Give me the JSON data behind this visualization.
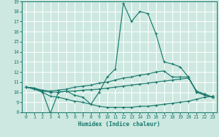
{
  "title": "",
  "xlabel": "Humidex (Indice chaleur)",
  "ylabel": "",
  "bg_color": "#cde8e0",
  "grid_color": "#ffffff",
  "line_color": "#1a7a6e",
  "xlim": [
    -0.5,
    23.5
  ],
  "ylim": [
    8,
    19
  ],
  "xticks": [
    0,
    1,
    2,
    3,
    4,
    5,
    6,
    7,
    8,
    9,
    10,
    11,
    12,
    13,
    14,
    15,
    16,
    17,
    18,
    19,
    20,
    21,
    22,
    23
  ],
  "yticks": [
    8,
    9,
    10,
    11,
    12,
    13,
    14,
    15,
    16,
    17,
    18,
    19
  ],
  "line1_x": [
    0,
    1,
    2,
    3,
    4,
    5,
    6,
    7,
    8,
    9,
    10,
    11,
    12,
    13,
    14,
    15,
    16,
    17,
    18,
    19,
    20,
    21,
    22,
    23
  ],
  "line1_y": [
    10.5,
    10.4,
    10.1,
    7.9,
    10.0,
    10.1,
    9.7,
    9.5,
    8.8,
    10.0,
    11.5,
    12.3,
    18.8,
    17.0,
    18.0,
    17.8,
    15.8,
    13.0,
    12.8,
    12.5,
    11.5,
    10.0,
    9.7,
    9.5
  ],
  "line2_x": [
    0,
    1,
    2,
    3,
    4,
    5,
    6,
    7,
    8,
    9,
    10,
    11,
    12,
    13,
    14,
    15,
    16,
    17,
    18,
    19,
    20,
    21,
    22,
    23
  ],
  "line2_y": [
    10.5,
    10.4,
    10.2,
    10.1,
    10.2,
    10.3,
    10.5,
    10.6,
    10.7,
    10.9,
    11.0,
    11.2,
    11.4,
    11.5,
    11.7,
    11.8,
    12.0,
    12.1,
    11.5,
    11.5,
    11.5,
    10.1,
    9.8,
    9.5
  ],
  "line3_x": [
    0,
    1,
    2,
    3,
    4,
    5,
    6,
    7,
    8,
    9,
    10,
    11,
    12,
    13,
    14,
    15,
    16,
    17,
    18,
    19,
    20,
    21,
    22,
    23
  ],
  "line3_y": [
    10.5,
    10.4,
    10.1,
    10.0,
    10.0,
    10.1,
    10.1,
    10.2,
    10.25,
    10.3,
    10.4,
    10.5,
    10.6,
    10.7,
    10.8,
    10.9,
    11.0,
    11.1,
    11.2,
    11.3,
    11.4,
    10.1,
    9.8,
    9.5
  ],
  "line4_x": [
    0,
    1,
    2,
    3,
    4,
    5,
    6,
    7,
    8,
    9,
    10,
    11,
    12,
    13,
    14,
    15,
    16,
    17,
    18,
    19,
    20,
    21,
    22,
    23
  ],
  "line4_y": [
    10.5,
    10.3,
    10.0,
    9.6,
    9.5,
    9.3,
    9.1,
    9.0,
    8.8,
    8.6,
    8.5,
    8.5,
    8.5,
    8.5,
    8.6,
    8.6,
    8.7,
    8.8,
    8.9,
    9.0,
    9.1,
    9.3,
    9.5,
    9.6
  ]
}
